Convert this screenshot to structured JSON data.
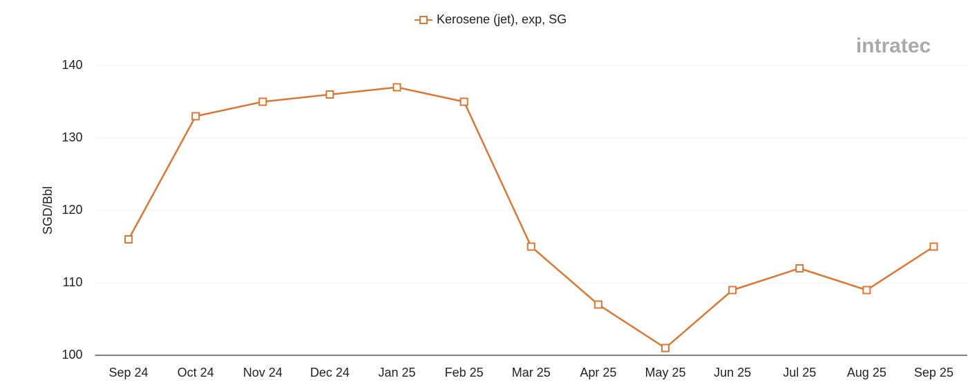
{
  "chart_data": {
    "type": "line",
    "watermark": "intratec",
    "y_label": "SGD/Bbl",
    "categories": [
      "Sep 24",
      "Oct 24",
      "Nov 24",
      "Dec 24",
      "Jan 25",
      "Feb 25",
      "Mar 25",
      "Apr 25",
      "May 25",
      "Jun 25",
      "Jul 25",
      "Aug 25",
      "Sep 25"
    ],
    "series": [
      {
        "name": "Kerosene (jet), exp, SG",
        "color": "#dc7633",
        "values": [
          116,
          133,
          135,
          136,
          137,
          135,
          115,
          107,
          101,
          109,
          112,
          109,
          115
        ]
      }
    ],
    "ylim": [
      100,
      140
    ],
    "yticks": [
      100,
      110,
      120,
      130,
      140
    ],
    "grid": true,
    "legend": "top"
  }
}
